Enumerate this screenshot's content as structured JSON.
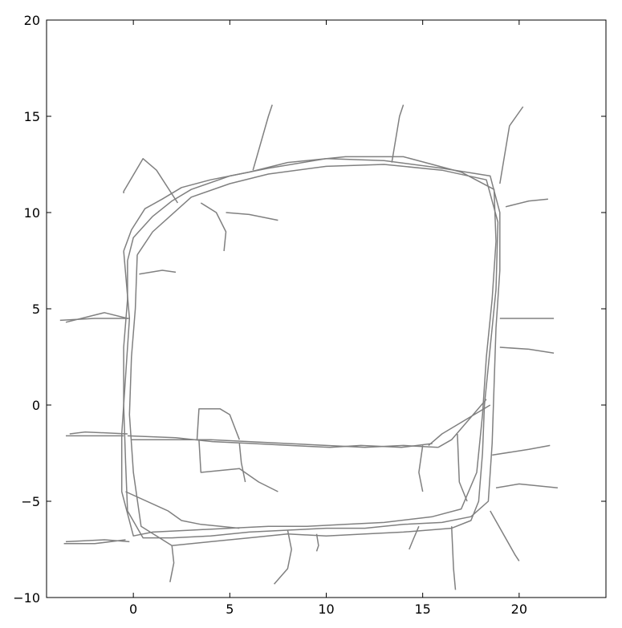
{
  "chart_data": {
    "type": "line",
    "title": "",
    "xlabel": "",
    "ylabel": "",
    "xlim": [
      -4.5,
      24.5
    ],
    "ylim": [
      -10,
      20
    ],
    "xticks": [
      0,
      5,
      10,
      15,
      20
    ],
    "yticks": [
      -10,
      -5,
      0,
      5,
      10,
      15,
      20
    ],
    "grid": false,
    "line_color": "#808080",
    "series": [
      {
        "x": [
          -0.3,
          0.0,
          1.0,
          2.0,
          3.0,
          5.0,
          7.0,
          10.0,
          13.0,
          16.0,
          18.5,
          19.0,
          19.0,
          18.8,
          18.7,
          18.6,
          18.4,
          17.5,
          16.0,
          14.0,
          12.0,
          10.0,
          8.0,
          6.0,
          4.0,
          2.0,
          0.5,
          -0.3,
          -0.4,
          -0.5,
          -0.5,
          -0.3,
          -0.3
        ],
        "y": [
          7.5,
          8.7,
          9.8,
          10.6,
          11.2,
          11.9,
          12.3,
          12.8,
          12.7,
          12.3,
          11.9,
          10.0,
          7.0,
          4.0,
          1.0,
          -2.0,
          -5.0,
          -5.8,
          -6.1,
          -6.2,
          -6.4,
          -6.4,
          -6.5,
          -6.6,
          -6.8,
          -6.9,
          -6.9,
          -5.5,
          -3.0,
          0.0,
          3.0,
          5.5,
          7.5
        ]
      },
      {
        "x": [
          0.2,
          1.0,
          2.0,
          3.0,
          5.0,
          7.0,
          10.0,
          13.0,
          16.0,
          18.3,
          18.9,
          18.8,
          18.5,
          18.2,
          18.1,
          17.9,
          17.5,
          16.5,
          14.0,
          12.0,
          10.0,
          8.0,
          6.0,
          4.0,
          2.0,
          0.4,
          0.0,
          -0.2,
          -0.1,
          0.1,
          0.2
        ],
        "y": [
          7.8,
          9.0,
          9.9,
          10.8,
          11.5,
          12.0,
          12.4,
          12.5,
          12.2,
          11.7,
          9.5,
          6.0,
          3.0,
          0.0,
          -2.5,
          -5.0,
          -6.0,
          -6.4,
          -6.6,
          -6.7,
          -6.8,
          -6.7,
          -6.9,
          -7.1,
          -7.3,
          -6.3,
          -3.5,
          -0.5,
          2.5,
          5.0,
          7.8
        ]
      },
      {
        "x": [
          -0.5,
          -0.1,
          0.6,
          1.5,
          2.5,
          4.0,
          6.0,
          8.0,
          11.0,
          14.0,
          17.0,
          18.7,
          18.8,
          18.6,
          18.3,
          18.1,
          17.8,
          17.0,
          15.5,
          13.0,
          11.0,
          9.0,
          7.0,
          5.0,
          3.0,
          1.0,
          0.0,
          -0.6,
          -0.6,
          -0.4,
          -0.2,
          -0.5
        ],
        "y": [
          8.0,
          9.1,
          10.2,
          10.7,
          11.3,
          11.7,
          12.1,
          12.6,
          12.9,
          12.9,
          12.1,
          11.2,
          8.5,
          5.5,
          2.5,
          -0.5,
          -3.5,
          -5.4,
          -5.8,
          -6.1,
          -6.2,
          -6.3,
          -6.3,
          -6.4,
          -6.5,
          -6.6,
          -6.8,
          -4.5,
          -1.5,
          1.5,
          4.5,
          8.0
        ]
      },
      {
        "x": [
          -0.1,
          2.0,
          4.0,
          6.0,
          8.0,
          10.0,
          12.0,
          14.0,
          15.8
        ],
        "y": [
          -1.8,
          -1.8,
          -1.8,
          -1.9,
          -2.0,
          -2.1,
          -2.2,
          -2.1,
          -2.2
        ]
      },
      {
        "x": [
          -0.3,
          2.2,
          4.1,
          6.2,
          8.1,
          10.2,
          11.8,
          13.9,
          15.5
        ],
        "y": [
          -1.6,
          -1.7,
          -1.9,
          -2.0,
          -2.1,
          -2.2,
          -2.1,
          -2.2,
          -2.0
        ]
      },
      {
        "x": [
          15.8,
          16.5,
          18.3
        ],
        "y": [
          -2.2,
          -1.8,
          0.3
        ]
      },
      {
        "x": [
          15.3,
          16.0,
          18.5
        ],
        "y": [
          -2.1,
          -1.5,
          0.0
        ]
      },
      {
        "x": [
          -0.3,
          -1.5,
          -3.5
        ],
        "y": [
          4.5,
          4.8,
          4.3
        ]
      },
      {
        "x": [
          -0.2,
          -2.0,
          -3.8
        ],
        "y": [
          4.5,
          4.5,
          4.4
        ]
      },
      {
        "x": [
          0.3,
          1.5,
          2.2
        ],
        "y": [
          6.8,
          7.0,
          6.9
        ]
      },
      {
        "x": [
          -0.3,
          -2.5,
          -3.3
        ],
        "y": [
          -1.5,
          -1.4,
          -1.5
        ]
      },
      {
        "x": [
          -0.5,
          -2.0,
          -3.5
        ],
        "y": [
          -1.6,
          -1.6,
          -1.6
        ]
      },
      {
        "x": [
          -0.4,
          -2.0,
          -3.6
        ],
        "y": [
          -7.0,
          -7.2,
          -7.2
        ]
      },
      {
        "x": [
          -0.2,
          -1.5,
          -3.5
        ],
        "y": [
          -7.1,
          -7.0,
          -7.1
        ]
      },
      {
        "x": [
          -0.5,
          -0.5,
          0.5,
          1.2,
          2.3
        ],
        "y": [
          11.0,
          11.1,
          12.8,
          12.2,
          10.5
        ]
      },
      {
        "x": [
          3.5,
          4.3,
          4.8,
          4.7
        ],
        "y": [
          10.5,
          10.0,
          9.0,
          8.0
        ]
      },
      {
        "x": [
          4.8,
          6.0,
          7.5
        ],
        "y": [
          10.0,
          9.9,
          9.6
        ]
      },
      {
        "x": [
          6.2,
          7.0,
          7.2
        ],
        "y": [
          12.2,
          15.0,
          15.6
        ]
      },
      {
        "x": [
          13.4,
          13.8,
          14.0
        ],
        "y": [
          12.6,
          15.0,
          15.6
        ]
      },
      {
        "x": [
          19.0,
          19.5,
          20.2
        ],
        "y": [
          11.5,
          14.5,
          15.5
        ]
      },
      {
        "x": [
          19.3,
          20.5,
          21.5
        ],
        "y": [
          10.3,
          10.6,
          10.7
        ]
      },
      {
        "x": [
          19.0,
          20.5,
          21.8
        ],
        "y": [
          4.5,
          4.5,
          4.5
        ]
      },
      {
        "x": [
          19.0,
          20.5,
          21.8
        ],
        "y": [
          3.0,
          2.9,
          2.7
        ]
      },
      {
        "x": [
          18.6,
          20.5,
          21.6
        ],
        "y": [
          -2.6,
          -2.3,
          -2.1
        ]
      },
      {
        "x": [
          18.8,
          20.0,
          22.0
        ],
        "y": [
          -4.3,
          -4.1,
          -4.3
        ]
      },
      {
        "x": [
          18.5,
          19.8,
          20.0
        ],
        "y": [
          -5.5,
          -7.8,
          -8.1
        ]
      },
      {
        "x": [
          16.5,
          16.6,
          16.7
        ],
        "y": [
          -6.3,
          -8.5,
          -9.6
        ]
      },
      {
        "x": [
          14.8,
          14.5,
          14.3
        ],
        "y": [
          -6.3,
          -7.0,
          -7.5
        ]
      },
      {
        "x": [
          8.0,
          8.2,
          8.0,
          7.3
        ],
        "y": [
          -6.5,
          -7.5,
          -8.5,
          -9.3
        ]
      },
      {
        "x": [
          9.5,
          9.6,
          9.5
        ],
        "y": [
          -6.7,
          -7.3,
          -7.6
        ]
      },
      {
        "x": [
          2.0,
          2.1,
          1.9
        ],
        "y": [
          -7.3,
          -8.2,
          -9.2
        ]
      },
      {
        "x": [
          3.3,
          3.4,
          4.5,
          5.0,
          5.5
        ],
        "y": [
          -1.8,
          -0.2,
          -0.2,
          -0.5,
          -1.8
        ]
      },
      {
        "x": [
          3.4,
          3.5,
          5.5,
          6.5,
          7.5
        ],
        "y": [
          -1.8,
          -3.5,
          -3.3,
          -4.0,
          -4.5
        ]
      },
      {
        "x": [
          5.5,
          5.6,
          5.8
        ],
        "y": [
          -2.0,
          -3.0,
          -4.0
        ]
      },
      {
        "x": [
          15.0,
          14.8,
          15.0
        ],
        "y": [
          -2.1,
          -3.5,
          -4.5
        ]
      },
      {
        "x": [
          -0.4,
          1.8,
          2.5,
          3.5,
          5.5
        ],
        "y": [
          -4.5,
          -5.5,
          -6.0,
          -6.2,
          -6.4
        ]
      },
      {
        "x": [
          16.8,
          16.9,
          17.3
        ],
        "y": [
          -1.5,
          -4.0,
          -5.0
        ]
      }
    ]
  }
}
